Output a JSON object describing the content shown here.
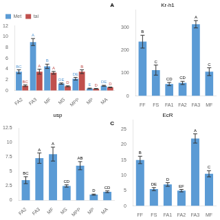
{
  "chart_data": [
    {
      "type": "bar",
      "title": "A",
      "categories": [
        "FA2",
        "FA3",
        "MF",
        "MS",
        "MPP",
        "MP",
        "MA"
      ],
      "series": [
        {
          "name": "Met",
          "color": "#5b9bd5",
          "values": [
            3.5,
            9.0,
            4.5,
            1.3,
            2.2,
            0.4,
            0.9
          ],
          "errors": [
            0.35,
            0.65,
            0.4,
            0.12,
            0.25,
            0.06,
            0.08
          ],
          "annotations": [
            "BC",
            "A",
            "B",
            "DE",
            "DE",
            "E",
            "DE"
          ]
        },
        {
          "name": "tai",
          "color": "#c0504d",
          "values": [
            0.9,
            3.5,
            3.3,
            0.8,
            3.5,
            0.35,
            0.6
          ],
          "errors": [
            0.15,
            0.45,
            0.25,
            0.08,
            0.35,
            0.04,
            0.05
          ],
          "annotations": [
            "BC",
            "A",
            "A",
            "D",
            "B",
            "D",
            "D"
          ]
        }
      ],
      "ylim": [
        0,
        12
      ],
      "yticks": [
        0,
        2,
        4,
        6,
        8,
        10,
        12
      ],
      "grid": false,
      "legend": "top"
    },
    {
      "type": "bar",
      "title": "Kr-h1",
      "categories": [
        "FF",
        "FS",
        "FA1",
        "FA2",
        "FA3",
        "MF"
      ],
      "values": [
        237,
        113,
        52,
        57,
        313,
        106
      ],
      "errors": [
        28,
        22,
        7,
        7,
        16,
        17
      ],
      "annotations": [
        "B",
        "C",
        "CD",
        "CD",
        "A",
        "C"
      ],
      "color": "#5b9bd5",
      "ylim": [
        0,
        375
      ],
      "yticks": [
        0,
        100,
        200,
        300
      ],
      "grid": false
    },
    {
      "type": "bar",
      "title": "usp",
      "subtitle": "C",
      "categories": [
        "FA2",
        "FA3",
        "MF",
        "MS",
        "MPP",
        "MP",
        "MA"
      ],
      "values": [
        3.5,
        7.3,
        8.0,
        2.5,
        6.0,
        1.0,
        1.5
      ],
      "errors": [
        0.6,
        0.9,
        1.2,
        0.2,
        0.7,
        0.1,
        0.15
      ],
      "annotations": [
        "BC",
        "A",
        "A",
        "CD",
        "AB",
        "D",
        "CD"
      ],
      "color": "#5b9bd5",
      "ylim": [
        0,
        12.5
      ],
      "yticks": [
        0,
        2.5,
        5,
        7.5,
        10,
        12.5
      ],
      "grid": false
    },
    {
      "type": "bar",
      "title": "EcR",
      "categories": [
        "FF",
        "FS",
        "FA1",
        "FA2",
        "FA3",
        "MF"
      ],
      "values": [
        15.0,
        5.5,
        7.0,
        5.0,
        22.0,
        10.5
      ],
      "errors": [
        1.2,
        0.5,
        0.6,
        0.4,
        1.5,
        1.0
      ],
      "annotations": [
        "B",
        "DE",
        "D",
        "EF",
        "A",
        "C"
      ],
      "color": "#5b9bd5",
      "ylim": [
        0,
        28
      ],
      "yticks": [
        0,
        5,
        10,
        15,
        20,
        25
      ],
      "grid": false
    }
  ]
}
